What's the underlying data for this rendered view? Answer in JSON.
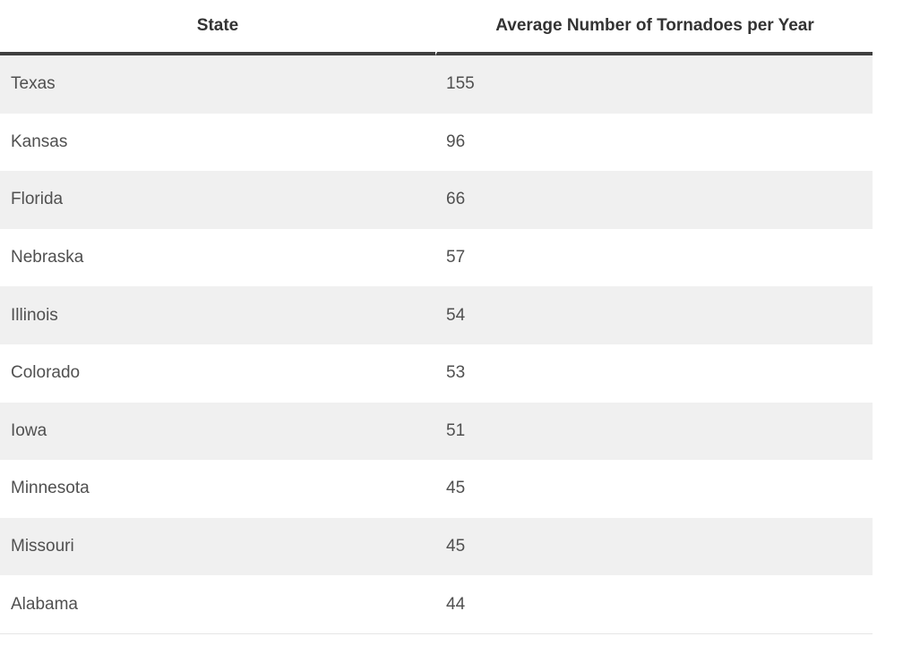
{
  "chart_data": {
    "type": "table",
    "columns": [
      "State",
      "Average Number of Tornadoes per Year"
    ],
    "rows": [
      [
        "Texas",
        155
      ],
      [
        "Kansas",
        96
      ],
      [
        "Florida",
        66
      ],
      [
        "Nebraska",
        57
      ],
      [
        "Illinois",
        54
      ],
      [
        "Colorado",
        53
      ],
      [
        "Iowa",
        51
      ],
      [
        "Minnesota",
        45
      ],
      [
        "Missouri",
        45
      ],
      [
        "Alabama",
        44
      ]
    ],
    "layout": {
      "header_alignment": "center",
      "cell_alignment": "left",
      "alternating_row_shading": true
    }
  },
  "colors": {
    "header_text": "#333333",
    "header_border": "#3f3f3f",
    "body_text": "#505050",
    "row_background": "#ffffff",
    "row_alt_background": "#f0f0f0",
    "bottom_border": "#e6e6e6"
  }
}
